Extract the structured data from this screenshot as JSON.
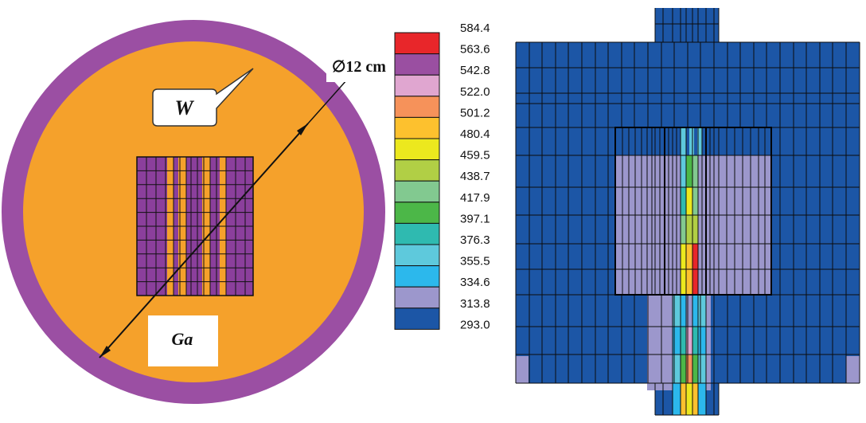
{
  "left_panel": {
    "label_w": "W",
    "label_ga": "Ga",
    "diameter_label": "∅12 cm",
    "colors": {
      "ring": "#9b4fa3",
      "ga": "#f5a12b",
      "fuel": "#8b3f9c"
    }
  },
  "scale_bar": {
    "ticks": [
      "584.4",
      "563.6",
      "542.8",
      "522.0",
      "501.2",
      "480.4",
      "459.5",
      "438.7",
      "417.9",
      "397.1",
      "376.3",
      "355.5",
      "334.6",
      "313.8",
      "293.0"
    ],
    "colors": [
      "#e8262a",
      "#9a4fa1",
      "#e0a6d0",
      "#f6925a",
      "#fdc12e",
      "#ece81e",
      "#b1cf45",
      "#82c990",
      "#4cb748",
      "#2fbab0",
      "#5ec9dc",
      "#2cb8ec",
      "#9c97cc",
      "#1c56a6"
    ]
  },
  "right_panel": {
    "colors": {
      "bg": "#1c56a6",
      "lav": "#9c97cc",
      "mid": "#5ec9dc",
      "cyan": "#2cb8ec",
      "teal": "#2fbab0",
      "green": "#4cb748",
      "lgreen": "#82c990",
      "yg": "#b1cf45",
      "yellow": "#ece81e",
      "gold": "#fdc12e",
      "orange": "#f6925a",
      "pink": "#e0a6d0",
      "red": "#e8262a"
    }
  }
}
